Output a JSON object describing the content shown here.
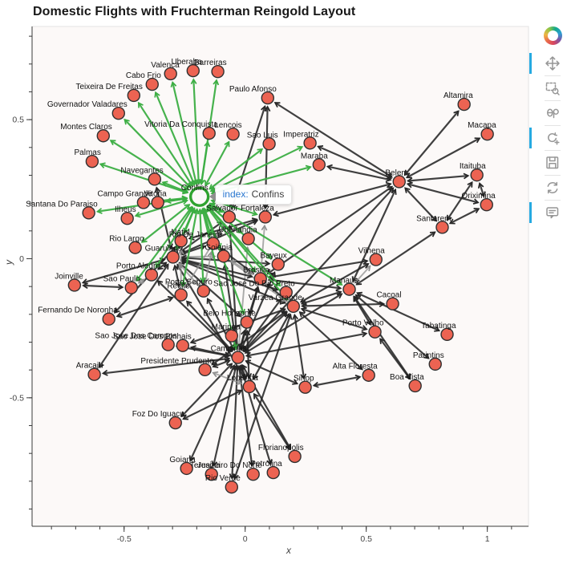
{
  "title": "Domestic Flights with Fruchterman Reingold Layout",
  "axes": {
    "x_label": "x",
    "y_label": "y",
    "x_ticks": [
      {
        "v": -0.5,
        "label": "-0.5"
      },
      {
        "v": 0,
        "label": "0"
      },
      {
        "v": 0.5,
        "label": "0.5"
      },
      {
        "v": 1,
        "label": "1"
      }
    ],
    "y_ticks": [
      {
        "v": 0.5,
        "label": "0.5"
      },
      {
        "v": 0,
        "label": "0"
      },
      {
        "v": -0.5,
        "label": "-0.5"
      }
    ],
    "x_minor": {
      "from": -0.8,
      "to": 1.1,
      "step": 0.1
    },
    "y_minor": {
      "from": -0.9,
      "to": 0.8,
      "step": 0.1
    }
  },
  "tooltip": {
    "field": "index:",
    "value": "Confins"
  },
  "toolbar": {
    "logo": "bokeh-logo",
    "tools": [
      {
        "id": "pan",
        "active": true
      },
      {
        "id": "box-zoom",
        "active": false
      },
      {
        "id": "lasso-select",
        "active": false
      },
      {
        "id": "wheel-zoom",
        "active": true
      },
      {
        "id": "save",
        "active": false
      },
      {
        "id": "reset",
        "active": false
      },
      {
        "id": "hover",
        "active": true
      }
    ]
  },
  "colors": {
    "plot_bg": "#fcf9f8",
    "outline": "#e3e3e3",
    "axis_line": "#3a3a3a",
    "tick_label": "#454545",
    "node_fill": "#ec6352",
    "node_stroke": "#303030",
    "node_label": "#111111",
    "edge_black": "#262626",
    "edge_gray": "#8f8f8f",
    "edge_green": "#3cae43",
    "hover_ring": "#2fa32f",
    "active_tool": "#26aae1",
    "tooltip_field": "#2a77d0"
  },
  "chart_data": {
    "type": "scatter",
    "subtype": "network-graph",
    "title": "Domestic Flights with Fruchterman Reingold Layout",
    "xlabel": "x",
    "ylabel": "y",
    "x_range": [
      -0.88,
      1.17
    ],
    "y_range": [
      -0.962,
      0.835
    ],
    "hovered_node": "Confins",
    "nodes": [
      {
        "name": "Confins",
        "x": -0.189,
        "y": 0.223
      },
      {
        "name": "Valenca",
        "x": -0.308,
        "y": 0.665
      },
      {
        "name": "Uberaba",
        "x": -0.215,
        "y": 0.676
      },
      {
        "name": "Barreiras",
        "x": -0.113,
        "y": 0.673
      },
      {
        "name": "Cabo Frio",
        "x": -0.384,
        "y": 0.627
      },
      {
        "name": "Teixeira De Freitas",
        "x": -0.46,
        "y": 0.587
      },
      {
        "name": "Paulo Afonso",
        "x": 0.093,
        "y": 0.578
      },
      {
        "name": "Governador Valadares",
        "x": -0.523,
        "y": 0.523
      },
      {
        "name": "Montes Claros",
        "x": -0.586,
        "y": 0.442
      },
      {
        "name": "Vitoria Da Conquista",
        "x": -0.149,
        "y": 0.451
      },
      {
        "name": "Lencois",
        "x": -0.05,
        "y": 0.448
      },
      {
        "name": "Sao Luis",
        "x": 0.099,
        "y": 0.413
      },
      {
        "name": "Imperatriz",
        "x": 0.268,
        "y": 0.416
      },
      {
        "name": "Maraba",
        "x": 0.305,
        "y": 0.338
      },
      {
        "name": "Altamira",
        "x": 0.904,
        "y": 0.555
      },
      {
        "name": "Macapa",
        "x": 1.0,
        "y": 0.448
      },
      {
        "name": "Belem",
        "x": 0.636,
        "y": 0.277
      },
      {
        "name": "Itaituba",
        "x": 0.957,
        "y": 0.301
      },
      {
        "name": "Oriximina",
        "x": 0.997,
        "y": 0.194
      },
      {
        "name": "Santarem",
        "x": 0.814,
        "y": 0.113
      },
      {
        "name": "Palmas",
        "x": -0.632,
        "y": 0.35
      },
      {
        "name": "Navegantes",
        "x": -0.374,
        "y": 0.286
      },
      {
        "name": "Campo Grande",
        "x": -0.42,
        "y": 0.202
      },
      {
        "name": "Vitoria",
        "x": -0.361,
        "y": 0.202
      },
      {
        "name": "Santana Do Paraiso",
        "x": -0.646,
        "y": 0.165
      },
      {
        "name": "Ilheus",
        "x": -0.487,
        "y": 0.145
      },
      {
        "name": "Rio Largo",
        "x": -0.454,
        "y": 0.04
      },
      {
        "name": "Natal",
        "x": -0.265,
        "y": 0.064
      },
      {
        "name": "Rio De Janeiro",
        "x": -0.132,
        "y": 0.055
      },
      {
        "name": "Guarulhos",
        "x": -0.298,
        "y": 0.006
      },
      {
        "name": "Porto Alegre",
        "x": -0.387,
        "y": -0.058
      },
      {
        "name": "Sao Paulo",
        "x": -0.47,
        "y": -0.104
      },
      {
        "name": "Joinville",
        "x": -0.705,
        "y": -0.095
      },
      {
        "name": "Recife",
        "x": -0.265,
        "y": -0.13
      },
      {
        "name": "Porto Seguro",
        "x": -0.172,
        "y": -0.116
      },
      {
        "name": "Salvador",
        "x": -0.066,
        "y": 0.15
      },
      {
        "name": "Fortaleza",
        "x": 0.083,
        "y": 0.15
      },
      {
        "name": "Goiania",
        "x": -0.089,
        "y": 0.009
      },
      {
        "name": "Uberlandia",
        "x": 0.013,
        "y": 0.072
      },
      {
        "name": "Bayeux",
        "x": 0.136,
        "y": -0.02
      },
      {
        "name": "Brasilia",
        "x": 0.063,
        "y": -0.072
      },
      {
        "name": "Sao Jose Do Rio Preto",
        "x": 0.169,
        "y": -0.121
      },
      {
        "name": "Varzea Grande",
        "x": 0.199,
        "y": -0.171
      },
      {
        "name": "Manaus",
        "x": 0.43,
        "y": -0.11
      },
      {
        "name": "Vilhena",
        "x": 0.54,
        "y": -0.003
      },
      {
        "name": "Cacoal",
        "x": 0.609,
        "y": -0.162
      },
      {
        "name": "Tabatinga",
        "x": 0.834,
        "y": -0.272
      },
      {
        "name": "Porto Velho",
        "x": 0.536,
        "y": -0.263
      },
      {
        "name": "Parintins",
        "x": 0.785,
        "y": -0.379
      },
      {
        "name": "Boa Vista",
        "x": 0.702,
        "y": -0.457
      },
      {
        "name": "Alta Floresta",
        "x": 0.51,
        "y": -0.419
      },
      {
        "name": "Sinop",
        "x": 0.248,
        "y": -0.462
      },
      {
        "name": "Fernando De Noronha",
        "x": -0.563,
        "y": -0.217
      },
      {
        "name": "Aracaju",
        "x": -0.623,
        "y": -0.416
      },
      {
        "name": "Belo Horizonte",
        "x": 0.007,
        "y": -0.228
      },
      {
        "name": "Maringa",
        "x": -0.056,
        "y": -0.277
      },
      {
        "name": "Sao Jose Dos Campos",
        "x": -0.318,
        "y": -0.309
      },
      {
        "name": "Sao Jose Dos Pinhais",
        "x": -0.258,
        "y": -0.312
      },
      {
        "name": "Campinas",
        "x": -0.03,
        "y": -0.355
      },
      {
        "name": "Presidente Prudente",
        "x": -0.166,
        "y": -0.399
      },
      {
        "name": "Londrina",
        "x": 0.017,
        "y": -0.46
      },
      {
        "name": "Foz Do Iguacu",
        "x": -0.288,
        "y": -0.59
      },
      {
        "name": "Florianopolis",
        "x": 0.205,
        "y": -0.711
      },
      {
        "name": "Goiana",
        "x": -0.242,
        "y": -0.754
      },
      {
        "name": "Teresina",
        "x": -0.139,
        "y": -0.775
      },
      {
        "name": "Rio Verde",
        "x": -0.056,
        "y": -0.821
      },
      {
        "name": "Juazeiro Do Norte",
        "x": 0.033,
        "y": -0.775
      },
      {
        "name": "Petrolina",
        "x": 0.116,
        "y": -0.769
      }
    ],
    "edges": [
      [
        "Belem",
        "Altamira",
        "b"
      ],
      [
        "Belem",
        "Macapa",
        "b"
      ],
      [
        "Belem",
        "Itaituba",
        "b"
      ],
      [
        "Belem",
        "Oriximina",
        "b"
      ],
      [
        "Belem",
        "Santarem",
        "b"
      ],
      [
        "Belem",
        "Maraba",
        "b"
      ],
      [
        "Belem",
        "Imperatriz",
        "b"
      ],
      [
        "Belem",
        "Paulo Afonso",
        "b"
      ],
      [
        "Belem",
        "Manaus",
        "b"
      ],
      [
        "Belem",
        "Fortaleza",
        "b"
      ],
      [
        "Belem",
        "Brasilia",
        "b"
      ],
      [
        "Belem",
        "Campinas",
        "b"
      ],
      [
        "Santarem",
        "Itaituba",
        "b"
      ],
      [
        "Santarem",
        "Oriximina",
        "b"
      ],
      [
        "Santarem",
        "Manaus",
        "b"
      ],
      [
        "Oriximina",
        "Itaituba",
        "b"
      ],
      [
        "Manaus",
        "Tabatinga",
        "b"
      ],
      [
        "Manaus",
        "Parintins",
        "b"
      ],
      [
        "Manaus",
        "Boa Vista",
        "b"
      ],
      [
        "Manaus",
        "Porto Velho",
        "b"
      ],
      [
        "Manaus",
        "Vilhena",
        "y"
      ],
      [
        "Manaus",
        "Varzea Grande",
        "b"
      ],
      [
        "Manaus",
        "Campinas",
        "b"
      ],
      [
        "Manaus",
        "Brasilia",
        "b"
      ],
      [
        "Porto Velho",
        "Varzea Grande",
        "b"
      ],
      [
        "Porto Velho",
        "Boa Vista",
        "b"
      ],
      [
        "Porto Velho",
        "Campinas",
        "b"
      ],
      [
        "Cacoal",
        "Varzea Grande",
        "b"
      ],
      [
        "Vilhena",
        "Varzea Grande",
        "b"
      ],
      [
        "Vilhena",
        "Brasilia",
        "b"
      ],
      [
        "Varzea Grande",
        "Sinop",
        "b"
      ],
      [
        "Varzea Grande",
        "Alta Floresta",
        "b"
      ],
      [
        "Varzea Grande",
        "Rio Verde",
        "b"
      ],
      [
        "Varzea Grande",
        "Campinas",
        "b"
      ],
      [
        "Varzea Grande",
        "Brasilia",
        "b"
      ],
      [
        "Varzea Grande",
        "Guarulhos",
        "b"
      ],
      [
        "Varzea Grande",
        "Goiania",
        "y"
      ],
      [
        "Varzea Grande",
        "Londrina",
        "b"
      ],
      [
        "Varzea Grande",
        "Presidente Prudente",
        "b"
      ],
      [
        "Varzea Grande",
        "Sao Jose Dos Pinhais",
        "b"
      ],
      [
        "Alta Floresta",
        "Sinop",
        "b"
      ],
      [
        "Campinas",
        "Goiana",
        "b"
      ],
      [
        "Campinas",
        "Teresina",
        "b"
      ],
      [
        "Campinas",
        "Juazeiro Do Norte",
        "b"
      ],
      [
        "Campinas",
        "Petrolina",
        "b"
      ],
      [
        "Campinas",
        "Rio Verde",
        "b"
      ],
      [
        "Campinas",
        "Florianopolis",
        "b"
      ],
      [
        "Campinas",
        "Foz Do Iguacu",
        "b"
      ],
      [
        "Campinas",
        "Sinop",
        "b"
      ],
      [
        "Campinas",
        "Maringa",
        "b"
      ],
      [
        "Campinas",
        "Londrina",
        "b"
      ],
      [
        "Campinas",
        "Presidente Prudente",
        "b"
      ],
      [
        "Campinas",
        "Sao Jose Dos Pinhais",
        "b"
      ],
      [
        "Campinas",
        "Sao Jose Dos Campos",
        "b"
      ],
      [
        "Campinas",
        "Belo Horizonte",
        "b"
      ],
      [
        "Campinas",
        "Recife",
        "b"
      ],
      [
        "Campinas",
        "Salvador",
        "b"
      ],
      [
        "Campinas",
        "Uberlandia",
        "y"
      ],
      [
        "Campinas",
        "Goiania",
        "b"
      ],
      [
        "Campinas",
        "Brasilia",
        "b"
      ],
      [
        "Campinas",
        "Porto Seguro",
        "b"
      ],
      [
        "Campinas",
        "Aracaju",
        "b"
      ],
      [
        "Londrina",
        "Foz Do Iguacu",
        "b"
      ],
      [
        "Londrina",
        "Florianopolis",
        "b"
      ],
      [
        "Londrina",
        "Presidente Prudente",
        "y"
      ],
      [
        "Londrina",
        "Guarulhos",
        "b"
      ],
      [
        "Londrina",
        "Belo Horizonte",
        "b"
      ],
      [
        "Guarulhos",
        "Natal",
        "b"
      ],
      [
        "Guarulhos",
        "Recife",
        "b"
      ],
      [
        "Guarulhos",
        "Porto Alegre",
        "b"
      ],
      [
        "Guarulhos",
        "Rio De Janeiro",
        "b"
      ],
      [
        "Guarulhos",
        "Salvador",
        "b"
      ],
      [
        "Guarulhos",
        "Fortaleza",
        "b"
      ],
      [
        "Guarulhos",
        "Brasilia",
        "b"
      ],
      [
        "Guarulhos",
        "Goiania",
        "y"
      ],
      [
        "Guarulhos",
        "Belo Horizonte",
        "b"
      ],
      [
        "Guarulhos",
        "Joinville",
        "b"
      ],
      [
        "Guarulhos",
        "Aracaju",
        "b"
      ],
      [
        "Guarulhos",
        "Bayeux",
        "b"
      ],
      [
        "Guarulhos",
        "Sao Jose Do Rio Preto",
        "b"
      ],
      [
        "Guarulhos",
        "Porto Seguro",
        "y"
      ],
      [
        "Guarulhos",
        "Navegantes",
        "b"
      ],
      [
        "Joinville",
        "Sao Paulo",
        "b"
      ],
      [
        "Fernando De Noronha",
        "Recife",
        "b"
      ],
      [
        "Fernando De Noronha",
        "Natal",
        "b"
      ],
      [
        "Paulo Afonso",
        "Salvador",
        "b"
      ],
      [
        "Paulo Afonso",
        "Fortaleza",
        "b"
      ],
      [
        "Rio De Janeiro",
        "Brasilia",
        "b"
      ],
      [
        "Rio De Janeiro",
        "Salvador",
        "b"
      ],
      [
        "Rio De Janeiro",
        "Porto Seguro",
        "y"
      ],
      [
        "Natal",
        "Recife",
        "y"
      ],
      [
        "Natal",
        "Fortaleza",
        "b"
      ],
      [
        "Salvador",
        "Recife",
        "y"
      ],
      [
        "Fortaleza",
        "Brasilia",
        "y"
      ],
      [
        "Brasilia",
        "Belo Horizonte",
        "b"
      ],
      [
        "Brasilia",
        "Goiania",
        "y"
      ],
      [
        "Bayeux",
        "Campinas",
        "b"
      ],
      [
        "Sao Jose Do Rio Preto",
        "Campinas",
        "b"
      ],
      [
        "Porto Alegre",
        "Campinas",
        "b"
      ],
      [
        "Porto Alegre",
        "Sao Paulo",
        "y"
      ],
      [
        "Confins",
        "Valenca",
        "g"
      ],
      [
        "Confins",
        "Uberaba",
        "g"
      ],
      [
        "Confins",
        "Barreiras",
        "g"
      ],
      [
        "Confins",
        "Cabo Frio",
        "g"
      ],
      [
        "Confins",
        "Teixeira De Freitas",
        "g"
      ],
      [
        "Confins",
        "Governador Valadares",
        "g"
      ],
      [
        "Confins",
        "Montes Claros",
        "g"
      ],
      [
        "Confins",
        "Vitoria Da Conquista",
        "g"
      ],
      [
        "Confins",
        "Lencois",
        "g"
      ],
      [
        "Confins",
        "Sao Luis",
        "g"
      ],
      [
        "Confins",
        "Imperatriz",
        "g"
      ],
      [
        "Confins",
        "Maraba",
        "g"
      ],
      [
        "Confins",
        "Palmas",
        "g"
      ],
      [
        "Confins",
        "Navegantes",
        "g"
      ],
      [
        "Confins",
        "Campo Grande",
        "g"
      ],
      [
        "Confins",
        "Vitoria",
        "g"
      ],
      [
        "Confins",
        "Santana Do Paraiso",
        "g"
      ],
      [
        "Confins",
        "Ilheus",
        "g"
      ],
      [
        "Confins",
        "Rio Largo",
        "g"
      ],
      [
        "Confins",
        "Natal",
        "g"
      ],
      [
        "Confins",
        "Rio De Janeiro",
        "g"
      ],
      [
        "Confins",
        "Guarulhos",
        "g"
      ],
      [
        "Confins",
        "Porto Alegre",
        "g"
      ],
      [
        "Confins",
        "Sao Paulo",
        "g"
      ],
      [
        "Confins",
        "Recife",
        "g"
      ],
      [
        "Confins",
        "Porto Seguro",
        "g"
      ],
      [
        "Confins",
        "Salvador",
        "g"
      ],
      [
        "Confins",
        "Fortaleza",
        "g"
      ],
      [
        "Confins",
        "Goiania",
        "g"
      ],
      [
        "Confins",
        "Uberlandia",
        "g"
      ],
      [
        "Confins",
        "Bayeux",
        "g"
      ],
      [
        "Confins",
        "Brasilia",
        "g"
      ],
      [
        "Confins",
        "Sao Jose Do Rio Preto",
        "g"
      ],
      [
        "Confins",
        "Varzea Grande",
        "g"
      ],
      [
        "Confins",
        "Manaus",
        "g"
      ],
      [
        "Confins",
        "Belo Horizonte",
        "g"
      ],
      [
        "Confins",
        "Campinas",
        "g"
      ]
    ]
  }
}
